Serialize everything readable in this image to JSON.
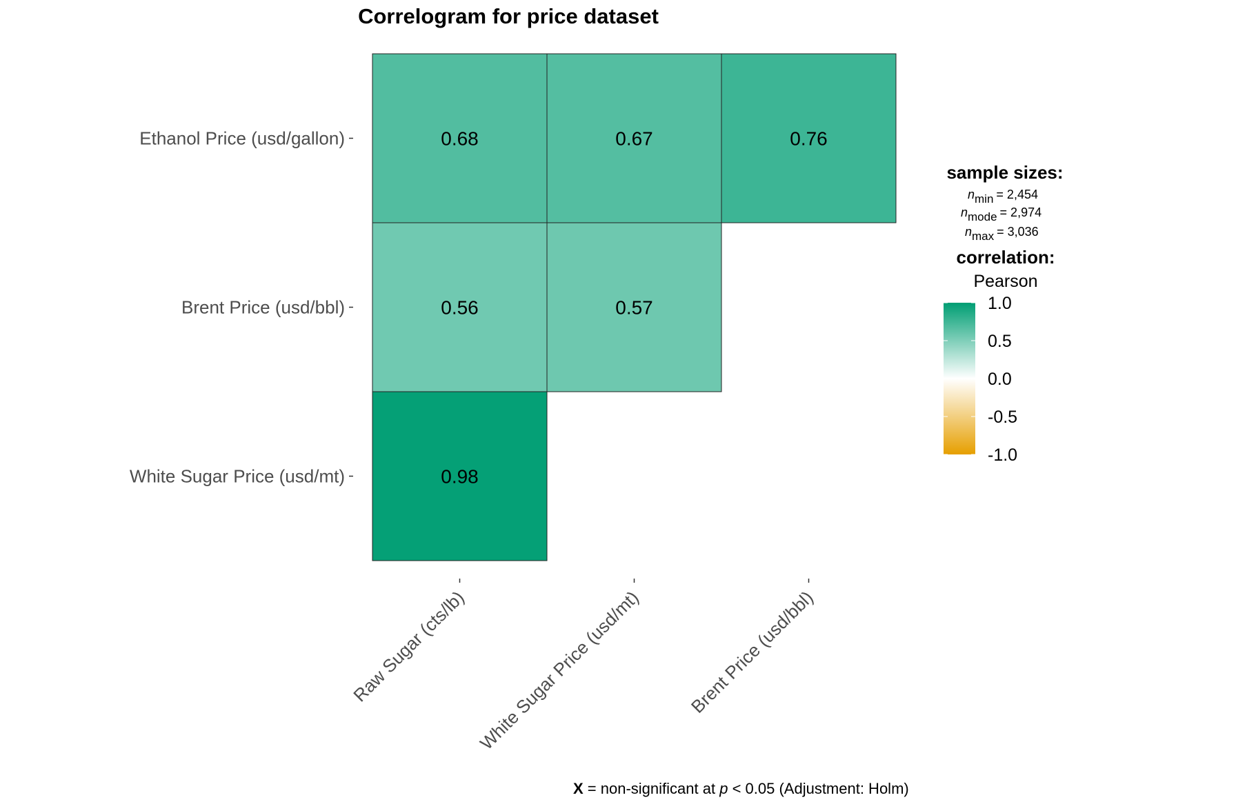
{
  "chart_data": {
    "type": "heatmap",
    "title": "Correlogram for price dataset",
    "rows": [
      "Ethanol Price (usd/gallon)",
      "Brent Price (usd/bbl)",
      "White Sugar Price (usd/mt)"
    ],
    "columns": [
      "Raw Sugar  (cts/lb)",
      "White Sugar Price (usd/mt)",
      "Brent Price (usd/bbl)"
    ],
    "cells": [
      {
        "row": "Ethanol Price (usd/gallon)",
        "col": "Raw Sugar  (cts/lb)",
        "value": 0.68,
        "label": "0.68"
      },
      {
        "row": "Ethanol Price (usd/gallon)",
        "col": "White Sugar Price (usd/mt)",
        "value": 0.67,
        "label": "0.67"
      },
      {
        "row": "Ethanol Price (usd/gallon)",
        "col": "Brent Price (usd/bbl)",
        "value": 0.76,
        "label": "0.76"
      },
      {
        "row": "Brent Price (usd/bbl)",
        "col": "Raw Sugar  (cts/lb)",
        "value": 0.56,
        "label": "0.56"
      },
      {
        "row": "Brent Price (usd/bbl)",
        "col": "White Sugar Price (usd/mt)",
        "value": 0.57,
        "label": "0.57"
      },
      {
        "row": "White Sugar Price (usd/mt)",
        "col": "Raw Sugar  (cts/lb)",
        "value": 0.98,
        "label": "0.98"
      }
    ],
    "legend": {
      "sample_sizes_title": "sample sizes:",
      "n_min": {
        "sub": "min",
        "value": "= 2,454"
      },
      "n_mode": {
        "sub": "mode",
        "value": "= 2,974"
      },
      "n_max": {
        "sub": "max",
        "value": "= 3,036"
      },
      "correlation_title": "correlation:",
      "method": "Pearson",
      "scale_range": [
        -1,
        1
      ],
      "ticks": [
        "1.0",
        "0.5",
        "0.0",
        "-0.5",
        "-1.0"
      ],
      "colors": {
        "high": "#009E73",
        "mid": "#FFFFFF",
        "low": "#E69F00"
      }
    },
    "caption": {
      "symbol": "X",
      "text_before": " = non-significant at ",
      "p": "p",
      "text_after": " < 0.05 (Adjustment: Holm)"
    }
  }
}
